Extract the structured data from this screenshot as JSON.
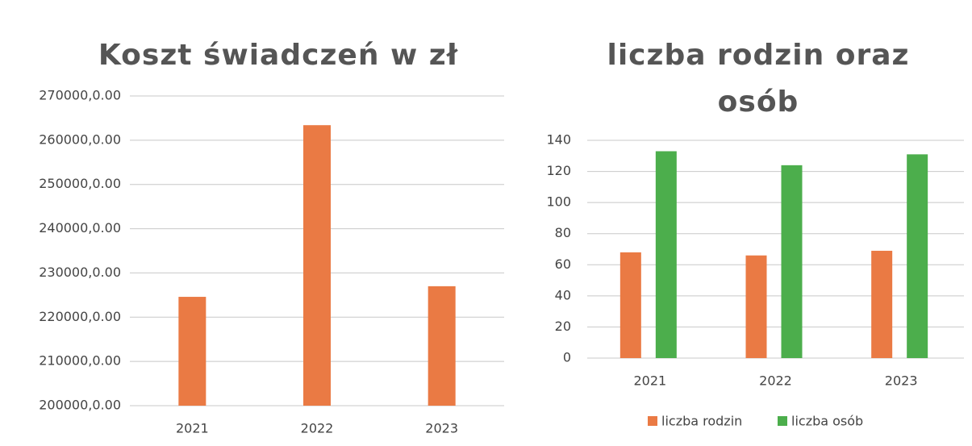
{
  "chart_data": [
    {
      "type": "bar",
      "title": "Koszt świadczeń w zł",
      "categories": [
        "2021",
        "2022",
        "2023"
      ],
      "series": [
        {
          "name": null,
          "color": "#ea7a44",
          "values": [
            224600,
            263400,
            227000
          ]
        }
      ],
      "ylim": [
        200000,
        270000
      ],
      "yticks": [
        {
          "value": 200000,
          "label": "200000,0.00"
        },
        {
          "value": 210000,
          "label": "210000,0.00"
        },
        {
          "value": 220000,
          "label": "220000,0.00"
        },
        {
          "value": 230000,
          "label": "230000,0.00"
        },
        {
          "value": 240000,
          "label": "240000,0.00"
        },
        {
          "value": 250000,
          "label": "250000,0.00"
        },
        {
          "value": 260000,
          "label": "260000,0.00"
        },
        {
          "value": 270000,
          "label": "270000,0.00"
        }
      ],
      "grid": true,
      "legend": false
    },
    {
      "type": "bar",
      "title": "liczba rodzin oraz osób",
      "categories": [
        "2021",
        "2022",
        "2023"
      ],
      "series": [
        {
          "name": "liczba rodzin",
          "color": "#ea7a44",
          "values": [
            68,
            66,
            69
          ]
        },
        {
          "name": "liczba osób",
          "color": "#4cae4c",
          "values": [
            133,
            124,
            131
          ]
        }
      ],
      "ylim": [
        0,
        140
      ],
      "yticks": [
        0,
        20,
        40,
        60,
        80,
        100,
        120,
        140
      ],
      "grid": true,
      "legend": "bottom"
    }
  ]
}
